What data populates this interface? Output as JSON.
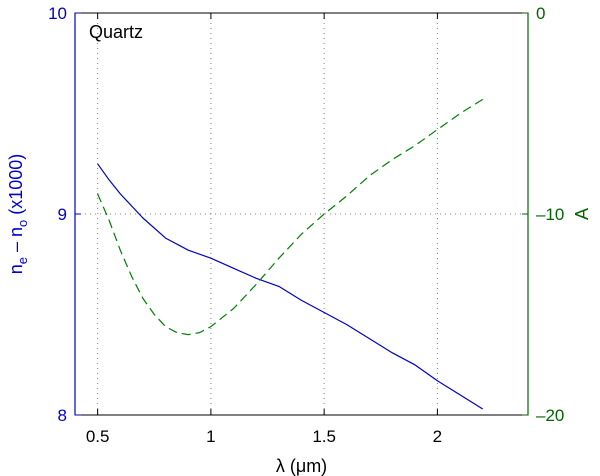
{
  "colors": {
    "left_axis": "#0000cc",
    "right_axis": "#006600",
    "grid": "#808080",
    "frame": "#000000"
  },
  "chart_data": {
    "type": "line",
    "annotation": "Quartz",
    "grid": true,
    "xlabel": {
      "text_before": "λ (",
      "text_mu": "μ",
      "text_after": "m)"
    },
    "ylabel_left": {
      "n": "n",
      "e": "e",
      "dash": " – ",
      "n2": "n",
      "o": "o",
      "tail": " (x1000)"
    },
    "ylabel_right": "A",
    "xlim": [
      0.4,
      2.4
    ],
    "ylim_left": [
      8,
      10
    ],
    "ylim_right": [
      -20,
      0
    ],
    "xticks": [
      0.5,
      1,
      1.5,
      2
    ],
    "xtick_labels": [
      "0.5",
      "1",
      "1.5",
      "2"
    ],
    "yticks_left": [
      8,
      9,
      10
    ],
    "ytick_labels_left": [
      "8",
      "9",
      "10"
    ],
    "yticks_right": [
      -20,
      -10,
      0
    ],
    "ytick_labels_right": [
      "–20",
      "–10",
      "0"
    ],
    "series": [
      {
        "axis": "left",
        "style": "solid",
        "color": "#0000cc",
        "x": [
          0.5,
          0.55,
          0.6,
          0.7,
          0.8,
          0.9,
          1.0,
          1.1,
          1.2,
          1.3,
          1.4,
          1.5,
          1.6,
          1.7,
          1.8,
          1.9,
          2.0,
          2.1,
          2.2
        ],
        "y": [
          9.25,
          9.17,
          9.1,
          8.98,
          8.88,
          8.82,
          8.78,
          8.73,
          8.68,
          8.64,
          8.57,
          8.51,
          8.45,
          8.38,
          8.31,
          8.25,
          8.17,
          8.1,
          8.03
        ]
      },
      {
        "axis": "right",
        "style": "dashed",
        "color": "#008000",
        "x": [
          0.5,
          0.55,
          0.6,
          0.65,
          0.7,
          0.75,
          0.8,
          0.85,
          0.9,
          0.95,
          1.0,
          1.1,
          1.2,
          1.3,
          1.4,
          1.5,
          1.6,
          1.7,
          1.8,
          1.9,
          2.0,
          2.1,
          2.2
        ],
        "y": [
          -9.0,
          -10.3,
          -11.8,
          -13.1,
          -14.2,
          -15.0,
          -15.6,
          -15.9,
          -16.0,
          -15.9,
          -15.6,
          -14.7,
          -13.5,
          -12.2,
          -11.0,
          -10.0,
          -9.1,
          -8.1,
          -7.3,
          -6.6,
          -5.8,
          -5.0,
          -4.3
        ]
      }
    ]
  }
}
